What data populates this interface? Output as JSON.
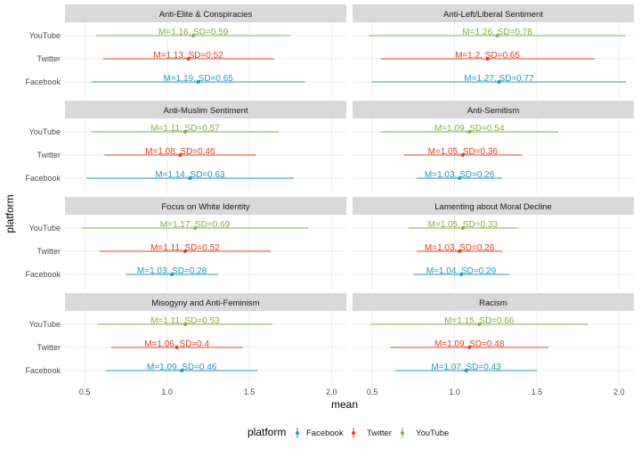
{
  "chart_data": {
    "type": "errorbar",
    "xlabel": "mean",
    "ylabel": "platform",
    "xlim": [
      0.38,
      2.09
    ],
    "xticks": [
      0.5,
      1.0,
      1.5,
      2.0
    ],
    "xtick_labels": [
      "0.5",
      "1.0",
      "1.5",
      "2.0"
    ],
    "platforms": [
      "YouTube",
      "Twitter",
      "Facebook"
    ],
    "legend": {
      "title": "platform",
      "position": "bottom",
      "items": [
        {
          "label": "Facebook",
          "color": "#1f9ac9"
        },
        {
          "label": "Twitter",
          "color": "#e8401c"
        },
        {
          "label": "YouTube",
          "color": "#7db346"
        }
      ]
    },
    "colors": {
      "Facebook": "#1f9ac9",
      "Twitter": "#e8401c",
      "YouTube": "#7db346"
    },
    "panels": [
      {
        "title": "Anti-Elite & Conspiracies",
        "series": [
          {
            "platform": "YouTube",
            "mean": 1.16,
            "sd": 0.59,
            "label": "M=1.16, SD=0.59"
          },
          {
            "platform": "Twitter",
            "mean": 1.13,
            "sd": 0.52,
            "label": "M=1.13, SD=0.52"
          },
          {
            "platform": "Facebook",
            "mean": 1.19,
            "sd": 0.65,
            "label": "M=1.19, SD=0.65"
          }
        ]
      },
      {
        "title": "Anti-Left/Liberal Sentiment",
        "series": [
          {
            "platform": "YouTube",
            "mean": 1.26,
            "sd": 0.78,
            "label": "M=1.26, SD=0.78"
          },
          {
            "platform": "Twitter",
            "mean": 1.2,
            "sd": 0.65,
            "label": "M=1.2, SD=0.65"
          },
          {
            "platform": "Facebook",
            "mean": 1.27,
            "sd": 0.77,
            "label": "M=1.27, SD=0.77"
          }
        ]
      },
      {
        "title": "Anti-Muslim Sentiment",
        "series": [
          {
            "platform": "YouTube",
            "mean": 1.11,
            "sd": 0.57,
            "label": "M=1.11, SD=0.57"
          },
          {
            "platform": "Twitter",
            "mean": 1.08,
            "sd": 0.46,
            "label": "M=1.08, SD=0.46"
          },
          {
            "platform": "Facebook",
            "mean": 1.14,
            "sd": 0.63,
            "label": "M=1.14, SD=0.63"
          }
        ]
      },
      {
        "title": "Anti-Semitism",
        "series": [
          {
            "platform": "YouTube",
            "mean": 1.09,
            "sd": 0.54,
            "label": "M=1.09, SD=0.54"
          },
          {
            "platform": "Twitter",
            "mean": 1.05,
            "sd": 0.36,
            "label": "M=1.05, SD=0.36"
          },
          {
            "platform": "Facebook",
            "mean": 1.03,
            "sd": 0.26,
            "label": "M=1.03, SD=0.26"
          }
        ]
      },
      {
        "title": "Focus on White Identity",
        "series": [
          {
            "platform": "YouTube",
            "mean": 1.17,
            "sd": 0.69,
            "label": "M=1.17, SD=0.69"
          },
          {
            "platform": "Twitter",
            "mean": 1.11,
            "sd": 0.52,
            "label": "M=1.11, SD=0.52"
          },
          {
            "platform": "Facebook",
            "mean": 1.03,
            "sd": 0.28,
            "label": "M=1.03, SD=0.28"
          }
        ]
      },
      {
        "title": "Lamenting about Moral Decline",
        "series": [
          {
            "platform": "YouTube",
            "mean": 1.05,
            "sd": 0.33,
            "label": "M=1.05, SD=0.33"
          },
          {
            "platform": "Twitter",
            "mean": 1.03,
            "sd": 0.26,
            "label": "M=1.03, SD=0.26"
          },
          {
            "platform": "Facebook",
            "mean": 1.04,
            "sd": 0.29,
            "label": "M=1.04, SD=0.29"
          }
        ]
      },
      {
        "title": "Misogyny and Anti-Feminism",
        "series": [
          {
            "platform": "YouTube",
            "mean": 1.11,
            "sd": 0.53,
            "label": "M=1.11, SD=0.53"
          },
          {
            "platform": "Twitter",
            "mean": 1.06,
            "sd": 0.4,
            "label": "M=1.06, SD=0.4"
          },
          {
            "platform": "Facebook",
            "mean": 1.09,
            "sd": 0.46,
            "label": "M=1.09, SD=0.46"
          }
        ]
      },
      {
        "title": "Racism",
        "series": [
          {
            "platform": "YouTube",
            "mean": 1.15,
            "sd": 0.66,
            "label": "M=1.15, SD=0.66"
          },
          {
            "platform": "Twitter",
            "mean": 1.09,
            "sd": 0.48,
            "label": "M=1.09, SD=0.48"
          },
          {
            "platform": "Facebook",
            "mean": 1.07,
            "sd": 0.43,
            "label": "M=1.07, SD=0.43"
          }
        ]
      }
    ]
  }
}
